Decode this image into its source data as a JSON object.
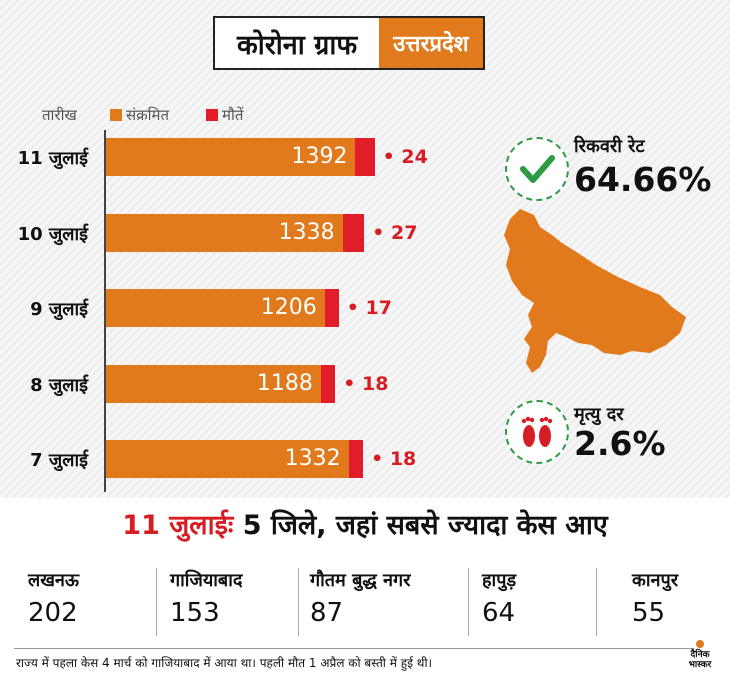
{
  "title": "कोरोना ग्राफ",
  "region": "उत्तरप्रदेश",
  "legend": {
    "date_label": "तारीख",
    "cases_label": "संक्रमित",
    "deaths_label": "मौतें"
  },
  "colors": {
    "cases": "#e07a1c",
    "deaths": "#e11d2a"
  },
  "chart_data": {
    "type": "bar",
    "orientation": "horizontal",
    "categories": [
      "11 जुलाई",
      "10 जुलाई",
      "9 जुलाई",
      "8 जुलाई",
      "7 जुलाई"
    ],
    "series": [
      {
        "name": "संक्रमित",
        "values": [
          1392,
          1338,
          1206,
          1188,
          1332
        ]
      },
      {
        "name": "मौतें",
        "values": [
          24,
          27,
          17,
          18,
          18
        ]
      }
    ]
  },
  "recovery": {
    "label": "रिकवरी रेट",
    "value": "64.66%",
    "icon": "checkmark-icon"
  },
  "mortality": {
    "label": "मृत्यु दर",
    "value": "2.6%",
    "icon": "footprints-icon"
  },
  "headline": {
    "date": "11 जुलाईः",
    "text": " 5 जिले, जहां सबसे ज्यादा केस आए"
  },
  "districts": [
    {
      "name": "लखनऊ",
      "value": "202"
    },
    {
      "name": "गाजियाबाद",
      "value": "153"
    },
    {
      "name": "गौतम बुद्ध नगर",
      "value": "87"
    },
    {
      "name": "हापुड़",
      "value": "64"
    },
    {
      "name": "कानपुर",
      "value": "55"
    }
  ],
  "footnote": "राज्य में पहला केस 4 मार्च को गाजियाबाद में आया था। पहली मौत 1 अप्रैल को बस्ती में हुई थी।",
  "brand": {
    "line1": "दैनिक",
    "line2": "भास्कर"
  }
}
